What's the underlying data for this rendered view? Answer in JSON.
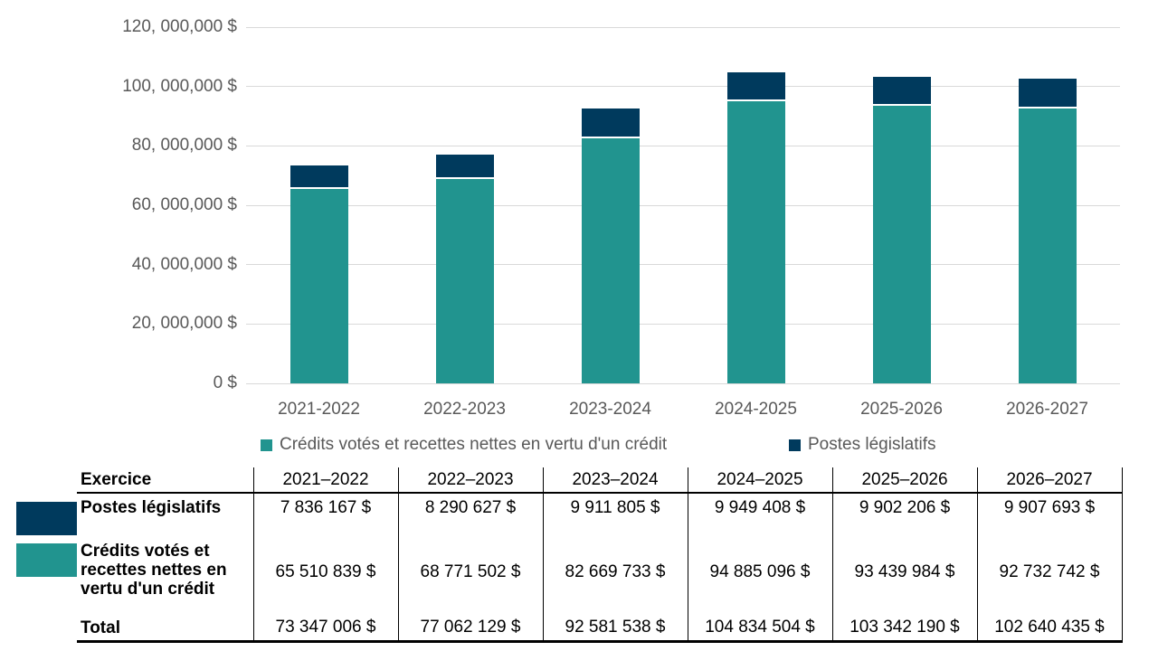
{
  "chart_data": {
    "type": "bar",
    "stacked": true,
    "title": "",
    "xlabel": "",
    "ylabel": "",
    "categories": [
      "2021-2022",
      "2022-2023",
      "2023-2024",
      "2024-2025",
      "2025-2026",
      "2026-2027"
    ],
    "series": [
      {
        "name": "Crédits votés et recettes nettes en vertu d'un crédit",
        "color": "#21948F",
        "values": [
          65510839,
          68771502,
          82669733,
          94885096,
          93439984,
          92732742
        ]
      },
      {
        "name": "Postes législatifs",
        "color": "#003A5D",
        "values": [
          7836167,
          8290627,
          9911805,
          9949408,
          9902206,
          9907693
        ]
      }
    ],
    "totals": [
      73347006,
      77062129,
      92581538,
      104834504,
      103342190,
      102640435
    ],
    "ylim": [
      0,
      120000000
    ],
    "ytick_labels": [
      "0 $",
      "20, 000,000 $",
      "40, 000,000 $",
      "60, 000,000 $",
      "80, 000,000 $",
      "100, 000,000 $",
      "120, 000,000 $"
    ],
    "grid": true,
    "gridline_color": "#D9D9D9",
    "axis_text_color": "#595959",
    "legend_position": "bottom"
  },
  "table": {
    "header": [
      "Exercice",
      "2021–2022",
      "2022–2023",
      "2023–2024",
      "2024–2025",
      "2025–2026",
      "2026–2027"
    ],
    "rows": [
      {
        "label": "Postes législatifs",
        "swatch_color": "#003A5D",
        "values": [
          "7 836 167 $",
          "8 290 627 $",
          "9 911 805 $",
          "9 949 408 $",
          "9 902 206 $",
          "9 907 693 $"
        ]
      },
      {
        "label": "Crédits votés et recettes nettes en vertu d'un crédit",
        "swatch_color": "#21948F",
        "values": [
          "65 510 839 $",
          "68 771 502 $",
          "82 669 733 $",
          "94 885 096 $",
          "93 439 984 $",
          "92 732 742 $"
        ]
      },
      {
        "label": "Total",
        "values": [
          "73 347 006 $",
          "77 062 129 $",
          "92 581 538 $",
          "104 834 504 $",
          "103 342 190 $",
          "102 640 435 $"
        ]
      }
    ]
  }
}
